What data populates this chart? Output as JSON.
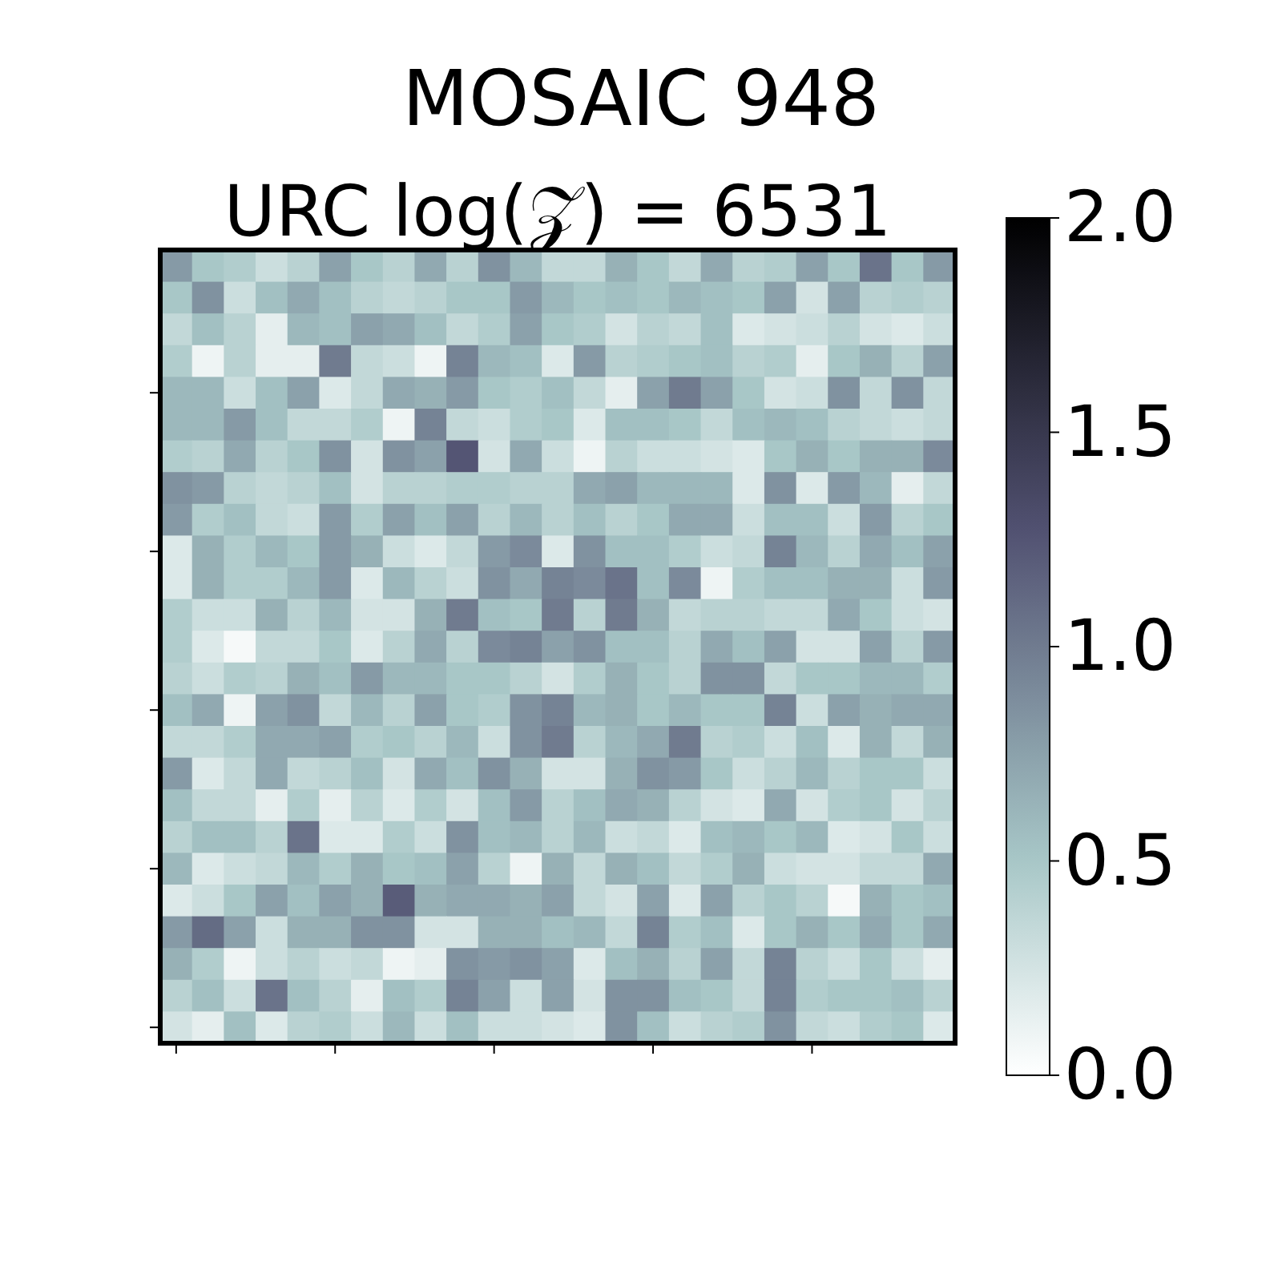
{
  "chart_data": {
    "type": "heatmap",
    "title": "MOSAIC 948",
    "subtitle": "URC log(𝒵) = 6531",
    "categories": [
      null,
      null,
      null,
      null,
      null,
      null,
      null,
      null,
      null,
      null,
      null,
      null,
      null,
      null,
      null,
      null,
      null,
      null,
      null,
      null,
      null,
      null,
      null,
      null,
      null
    ],
    "y_categories": [
      null,
      null,
      null,
      null,
      null,
      null,
      null,
      null,
      null,
      null,
      null,
      null,
      null,
      null,
      null,
      null,
      null,
      null,
      null,
      null,
      null,
      null,
      null,
      null,
      null
    ],
    "clim": [
      0,
      2
    ],
    "cticks": [
      {
        "value": 0,
        "label": "0.0"
      },
      0.5,
      {
        "value": 1,
        "label": "1.0"
      },
      1.5,
      {
        "value": 2,
        "label": "2.0"
      }
    ],
    "cells": [
      [
        0.8,
        0.5,
        0.45,
        0.3,
        0.4,
        0.75,
        0.5,
        0.4,
        0.7,
        0.4,
        0.85,
        0.6,
        0.35,
        0.35,
        0.65,
        0.5,
        0.35,
        0.7,
        0.4,
        0.45,
        0.75,
        0.5,
        1.05,
        0.5,
        0.8
      ],
      [
        0.5,
        0.85,
        0.3,
        0.55,
        0.7,
        0.55,
        0.4,
        0.35,
        0.4,
        0.5,
        0.5,
        0.8,
        0.6,
        0.5,
        0.55,
        0.5,
        0.6,
        0.55,
        0.5,
        0.75,
        0.25,
        0.75,
        0.4,
        0.45,
        0.4
      ],
      [
        0.35,
        0.55,
        0.4,
        0.15,
        0.6,
        0.55,
        0.75,
        0.7,
        0.55,
        0.35,
        0.45,
        0.75,
        0.5,
        0.45,
        0.25,
        0.4,
        0.35,
        0.55,
        0.2,
        0.25,
        0.3,
        0.4,
        0.25,
        0.2,
        0.3
      ],
      [
        0.45,
        0.1,
        0.4,
        0.15,
        0.15,
        1.0,
        0.35,
        0.3,
        0.1,
        0.95,
        0.6,
        0.55,
        0.2,
        0.8,
        0.4,
        0.45,
        0.5,
        0.55,
        0.4,
        0.45,
        0.15,
        0.5,
        0.65,
        0.4,
        0.75
      ],
      [
        0.6,
        0.6,
        0.3,
        0.55,
        0.75,
        0.2,
        0.35,
        0.7,
        0.65,
        0.8,
        0.5,
        0.45,
        0.55,
        0.35,
        0.15,
        0.75,
        1.0,
        0.75,
        0.5,
        0.25,
        0.3,
        0.85,
        0.35,
        0.85,
        0.35
      ],
      [
        0.6,
        0.6,
        0.8,
        0.55,
        0.35,
        0.35,
        0.45,
        0.1,
        0.95,
        0.35,
        0.3,
        0.45,
        0.5,
        0.2,
        0.55,
        0.55,
        0.5,
        0.35,
        0.55,
        0.6,
        0.55,
        0.4,
        0.35,
        0.3,
        0.35
      ],
      [
        0.45,
        0.4,
        0.7,
        0.4,
        0.5,
        0.85,
        0.25,
        0.85,
        0.75,
        1.25,
        0.25,
        0.7,
        0.3,
        0.1,
        0.4,
        0.3,
        0.3,
        0.25,
        0.2,
        0.5,
        0.65,
        0.5,
        0.65,
        0.65,
        0.9
      ],
      [
        0.85,
        0.8,
        0.4,
        0.35,
        0.4,
        0.55,
        0.25,
        0.4,
        0.4,
        0.45,
        0.45,
        0.4,
        0.4,
        0.7,
        0.75,
        0.6,
        0.6,
        0.6,
        0.2,
        0.85,
        0.2,
        0.8,
        0.6,
        0.15,
        0.35
      ],
      [
        0.8,
        0.45,
        0.55,
        0.35,
        0.3,
        0.8,
        0.45,
        0.75,
        0.55,
        0.75,
        0.4,
        0.6,
        0.4,
        0.55,
        0.4,
        0.5,
        0.7,
        0.7,
        0.3,
        0.55,
        0.55,
        0.3,
        0.8,
        0.4,
        0.5
      ],
      [
        0.2,
        0.65,
        0.45,
        0.6,
        0.5,
        0.8,
        0.65,
        0.3,
        0.2,
        0.35,
        0.8,
        0.9,
        0.2,
        0.85,
        0.55,
        0.55,
        0.45,
        0.3,
        0.35,
        0.95,
        0.6,
        0.4,
        0.7,
        0.55,
        0.75
      ],
      [
        0.2,
        0.65,
        0.45,
        0.45,
        0.6,
        0.8,
        0.2,
        0.6,
        0.4,
        0.3,
        0.85,
        0.7,
        0.95,
        0.9,
        1.05,
        0.55,
        0.9,
        0.1,
        0.45,
        0.55,
        0.55,
        0.65,
        0.65,
        0.3,
        0.8
      ],
      [
        0.45,
        0.3,
        0.3,
        0.65,
        0.4,
        0.6,
        0.25,
        0.25,
        0.65,
        1.0,
        0.55,
        0.5,
        1.0,
        0.4,
        1.0,
        0.65,
        0.35,
        0.4,
        0.4,
        0.35,
        0.35,
        0.7,
        0.5,
        0.3,
        0.25
      ],
      [
        0.45,
        0.2,
        0.05,
        0.35,
        0.35,
        0.5,
        0.2,
        0.4,
        0.7,
        0.4,
        0.9,
        0.95,
        0.75,
        0.85,
        0.55,
        0.55,
        0.4,
        0.7,
        0.55,
        0.75,
        0.25,
        0.25,
        0.75,
        0.4,
        0.8
      ],
      [
        0.4,
        0.3,
        0.45,
        0.4,
        0.65,
        0.55,
        0.8,
        0.6,
        0.6,
        0.5,
        0.5,
        0.4,
        0.25,
        0.45,
        0.65,
        0.5,
        0.4,
        0.85,
        0.85,
        0.35,
        0.5,
        0.5,
        0.6,
        0.6,
        0.45
      ],
      [
        0.55,
        0.7,
        0.1,
        0.75,
        0.85,
        0.35,
        0.6,
        0.4,
        0.75,
        0.5,
        0.45,
        0.85,
        0.95,
        0.6,
        0.65,
        0.5,
        0.6,
        0.5,
        0.5,
        0.95,
        0.3,
        0.75,
        0.65,
        0.7,
        0.7
      ],
      [
        0.35,
        0.35,
        0.45,
        0.7,
        0.7,
        0.75,
        0.45,
        0.5,
        0.4,
        0.6,
        0.3,
        0.85,
        1.0,
        0.4,
        0.6,
        0.7,
        1.0,
        0.4,
        0.45,
        0.3,
        0.55,
        0.2,
        0.65,
        0.35,
        0.65
      ],
      [
        0.8,
        0.2,
        0.35,
        0.7,
        0.35,
        0.4,
        0.55,
        0.25,
        0.7,
        0.55,
        0.85,
        0.65,
        0.25,
        0.25,
        0.65,
        0.85,
        0.8,
        0.5,
        0.3,
        0.4,
        0.6,
        0.4,
        0.5,
        0.5,
        0.3
      ],
      [
        0.55,
        0.35,
        0.35,
        0.15,
        0.45,
        0.15,
        0.4,
        0.2,
        0.45,
        0.25,
        0.55,
        0.8,
        0.4,
        0.55,
        0.7,
        0.65,
        0.4,
        0.25,
        0.2,
        0.7,
        0.25,
        0.45,
        0.5,
        0.25,
        0.4
      ],
      [
        0.4,
        0.55,
        0.55,
        0.4,
        1.05,
        0.2,
        0.2,
        0.45,
        0.3,
        0.85,
        0.55,
        0.6,
        0.4,
        0.6,
        0.3,
        0.35,
        0.2,
        0.55,
        0.6,
        0.5,
        0.6,
        0.2,
        0.25,
        0.5,
        0.3
      ],
      [
        0.6,
        0.2,
        0.3,
        0.35,
        0.6,
        0.45,
        0.65,
        0.5,
        0.55,
        0.75,
        0.4,
        0.1,
        0.65,
        0.35,
        0.65,
        0.55,
        0.35,
        0.45,
        0.65,
        0.3,
        0.25,
        0.25,
        0.35,
        0.35,
        0.7
      ],
      [
        0.2,
        0.3,
        0.5,
        0.75,
        0.55,
        0.75,
        0.65,
        1.2,
        0.65,
        0.7,
        0.7,
        0.65,
        0.75,
        0.35,
        0.25,
        0.75,
        0.2,
        0.75,
        0.4,
        0.5,
        0.4,
        0.05,
        0.65,
        0.5,
        0.55
      ],
      [
        0.8,
        1.1,
        0.75,
        0.3,
        0.65,
        0.65,
        0.85,
        0.85,
        0.25,
        0.25,
        0.65,
        0.65,
        0.55,
        0.6,
        0.35,
        0.95,
        0.45,
        0.55,
        0.2,
        0.5,
        0.65,
        0.5,
        0.7,
        0.5,
        0.7
      ],
      [
        0.65,
        0.45,
        0.1,
        0.3,
        0.4,
        0.3,
        0.35,
        0.1,
        0.15,
        0.85,
        0.8,
        0.85,
        0.75,
        0.2,
        0.55,
        0.65,
        0.4,
        0.75,
        0.35,
        0.95,
        0.4,
        0.3,
        0.5,
        0.3,
        0.15
      ],
      [
        0.4,
        0.55,
        0.3,
        1.05,
        0.55,
        0.4,
        0.15,
        0.55,
        0.45,
        0.95,
        0.75,
        0.3,
        0.75,
        0.25,
        0.85,
        0.85,
        0.55,
        0.5,
        0.35,
        0.95,
        0.45,
        0.5,
        0.5,
        0.55,
        0.4
      ],
      [
        0.25,
        0.15,
        0.55,
        0.2,
        0.4,
        0.45,
        0.3,
        0.6,
        0.3,
        0.55,
        0.3,
        0.3,
        0.25,
        0.2,
        0.85,
        0.55,
        0.3,
        0.4,
        0.45,
        0.85,
        0.35,
        0.3,
        0.45,
        0.5,
        0.2
      ]
    ]
  }
}
